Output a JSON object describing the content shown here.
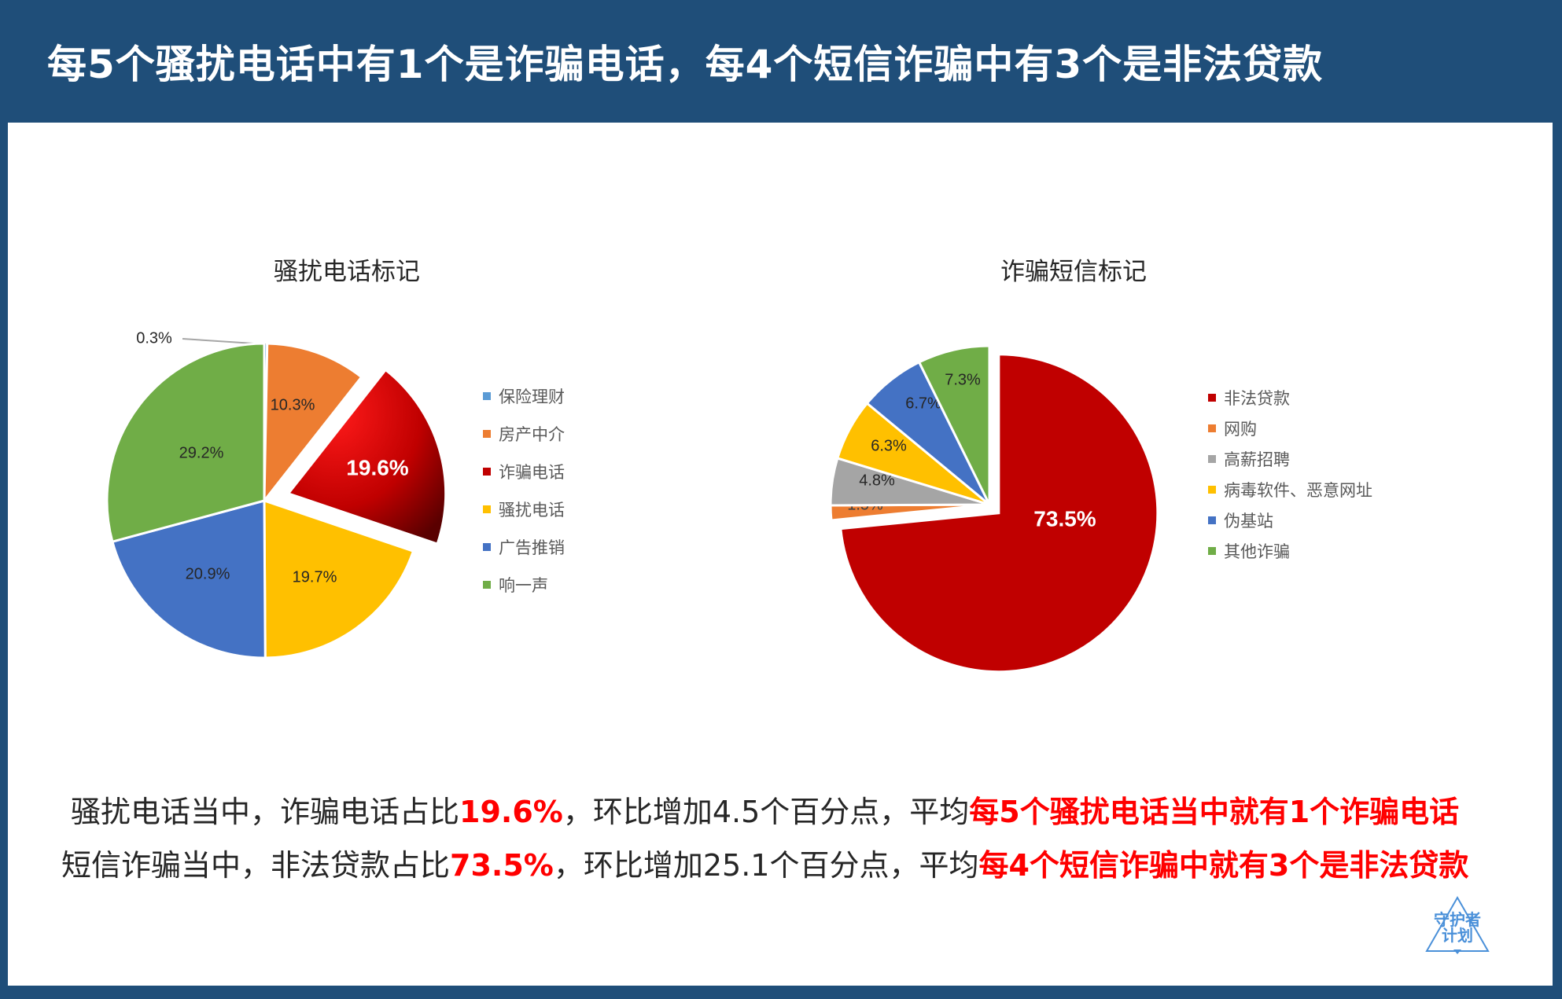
{
  "header": {
    "title": "每5个骚扰电话中有1个是诈骗电话，每4个短信诈骗中有3个是非法贷款"
  },
  "colors": {
    "header_bg": "#1f4e79",
    "blue_light": "#5b9bd5",
    "orange": "#ed7d31",
    "red": "#c00000",
    "yellow": "#ffc000",
    "blue": "#4472c4",
    "green": "#70ad47",
    "gray": "#a5a5a5",
    "highlight": "#ff0000"
  },
  "chart_data": [
    {
      "type": "pie",
      "title": "骚扰电话标记",
      "categories": [
        "保险理财",
        "房产中介",
        "诈骗电话",
        "骚扰电话",
        "广告推销",
        "响一声"
      ],
      "values": [
        0.3,
        10.3,
        19.6,
        19.7,
        20.9,
        29.2
      ],
      "labels": [
        "0.3%",
        "10.3%",
        "19.6%",
        "19.7%",
        "20.9%",
        "29.2%"
      ],
      "colors": [
        "#5b9bd5",
        "#ed7d31",
        "#c00000",
        "#ffc000",
        "#4472c4",
        "#70ad47"
      ],
      "exploded": "诈骗电话",
      "legend": "right"
    },
    {
      "type": "pie",
      "title": "诈骗短信标记",
      "categories": [
        "非法贷款",
        "网购",
        "高薪招聘",
        "病毒软件、恶意网址",
        "伪基站",
        "其他诈骗"
      ],
      "values": [
        73.5,
        1.5,
        4.8,
        6.3,
        6.7,
        7.3
      ],
      "labels": [
        "73.5%",
        "1.5%",
        "4.8%",
        "6.3%",
        "6.7%",
        "7.3%"
      ],
      "colors": [
        "#c00000",
        "#ed7d31",
        "#a5a5a5",
        "#ffc000",
        "#4472c4",
        "#70ad47"
      ],
      "exploded": "非法贷款",
      "legend": "right"
    }
  ],
  "summary": {
    "line1": {
      "prefix": "骚扰电话当中，诈骗电话占比",
      "value": "19.6%",
      "middle": "，环比增加4.5个百分点，平均",
      "highlight": "每5个骚扰电话当中就有1个诈骗电话"
    },
    "line2": {
      "prefix": "短信诈骗当中，非法贷款占比",
      "value": "73.5%",
      "middle": "，环比增加25.1个百分点，平均",
      "highlight": "每4个短信诈骗中就有3个是非法贷款"
    }
  },
  "logo": {
    "line1": "守护者",
    "line2": "计划"
  }
}
